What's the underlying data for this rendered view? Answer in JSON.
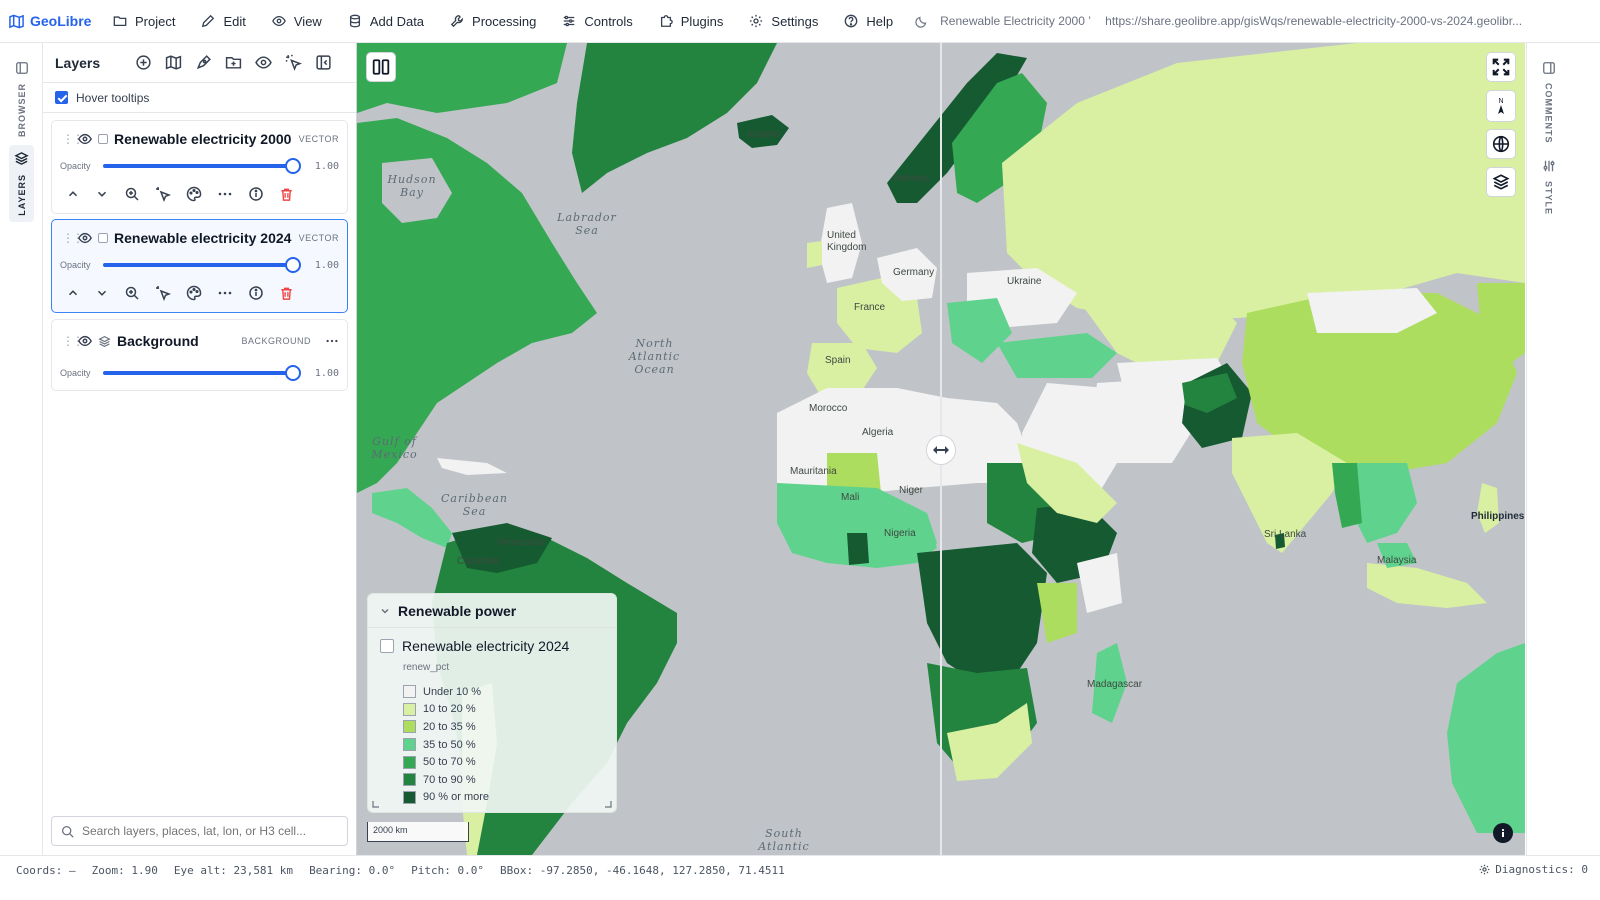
{
  "app": {
    "name": "GeoLibre"
  },
  "menu": [
    {
      "label": "Project",
      "icon": "folder-icon"
    },
    {
      "label": "Edit",
      "icon": "pencil-icon"
    },
    {
      "label": "View",
      "icon": "eye-icon"
    },
    {
      "label": "Add Data",
      "icon": "database-icon"
    },
    {
      "label": "Processing",
      "icon": "wrench-icon"
    },
    {
      "label": "Controls",
      "icon": "sliders-icon"
    },
    {
      "label": "Plugins",
      "icon": "puzzle-icon"
    },
    {
      "label": "Settings",
      "icon": "gear-icon"
    },
    {
      "label": "Help",
      "icon": "help-icon"
    }
  ],
  "document": {
    "title": "Renewable Electricity 2000 ’",
    "url": "https://share.geolibre.app/gisWqs/renewable-electricity-2000-vs-2024.geolibr..."
  },
  "left_rail": {
    "browser_label": "BROWSER",
    "layers_label": "LAYERS"
  },
  "right_rail": {
    "comments_label": "COMMENTS",
    "style_label": "STYLE"
  },
  "layers_panel": {
    "title": "Layers",
    "hover_tooltips_label": "Hover tooltips",
    "hover_tooltips_checked": true,
    "opacity_label": "Opacity",
    "layers": [
      {
        "name": "Renewable electricity 2000",
        "type": "VECTOR",
        "opacity": "1.00",
        "opacity_fraction": 1.0,
        "visible": true,
        "selected": false
      },
      {
        "name": "Renewable electricity 2024",
        "type": "VECTOR",
        "opacity": "1.00",
        "opacity_fraction": 1.0,
        "visible": true,
        "selected": true
      },
      {
        "name": "Background",
        "type": "BACKGROUND",
        "opacity": "1.00",
        "opacity_fraction": 1.0,
        "visible": true,
        "selected": false
      }
    ],
    "search_placeholder": "Search layers, places, lat, lon, or H3 cell..."
  },
  "map": {
    "ocean_labels": [
      {
        "text": "Hudson\nBay"
      },
      {
        "text": "Labrador\nSea"
      },
      {
        "text": "North\nAtlantic\nOcean"
      },
      {
        "text": "Gulf of\nMexico"
      },
      {
        "text": "Caribbean\nSea"
      },
      {
        "text": "South\nAtlantic"
      }
    ],
    "country_labels": [
      {
        "text": "Iceland"
      },
      {
        "text": "Norway"
      },
      {
        "text": "United\nKingdom"
      },
      {
        "text": "France"
      },
      {
        "text": "Spain"
      },
      {
        "text": "Germany"
      },
      {
        "text": "Ukraine"
      },
      {
        "text": "Morocco"
      },
      {
        "text": "Algeria"
      },
      {
        "text": "Mauritania"
      },
      {
        "text": "Mali"
      },
      {
        "text": "Niger"
      },
      {
        "text": "Nigeria"
      },
      {
        "text": "Venezuela"
      },
      {
        "text": "Colombia"
      },
      {
        "text": "Philippines"
      },
      {
        "text": "Sri Lanka"
      },
      {
        "text": "Madagascar"
      },
      {
        "text": "Malaysia"
      }
    ],
    "scale_label": "2000 km",
    "colors": {
      "ocean": "#c0c4c8",
      "under_10": "#f2f2f2",
      "10_20": "#d9f0a3",
      "20_35": "#addd5e",
      "35_50": "#5fd38d",
      "50_70": "#35a853",
      "70_90": "#23843f",
      "90_plus": "#165a31"
    }
  },
  "legend": {
    "title": "Renewable power",
    "layer_name": "Renewable electricity 2024",
    "field": "renew_pct",
    "items": [
      {
        "label": "Under 10 %",
        "color": "#f2f2f2"
      },
      {
        "label": "10 to 20 %",
        "color": "#d9f0a3"
      },
      {
        "label": "20 to 35 %",
        "color": "#addd5e"
      },
      {
        "label": "35 to 50 %",
        "color": "#5fd38d"
      },
      {
        "label": "50 to 70 %",
        "color": "#35a853"
      },
      {
        "label": "70 to 90 %",
        "color": "#23843f"
      },
      {
        "label": "90 % or more",
        "color": "#165a31"
      }
    ]
  },
  "status": {
    "coords": "Coords: —",
    "zoom": "Zoom: 1.90",
    "eye_alt": "Eye alt: 23,581 km",
    "bearing": "Bearing: 0.0°",
    "pitch": "Pitch: 0.0°",
    "bbox": "BBox: -97.2850, -46.1648, 127.2850, 71.4511",
    "diagnostics": "Diagnostics: 0"
  }
}
